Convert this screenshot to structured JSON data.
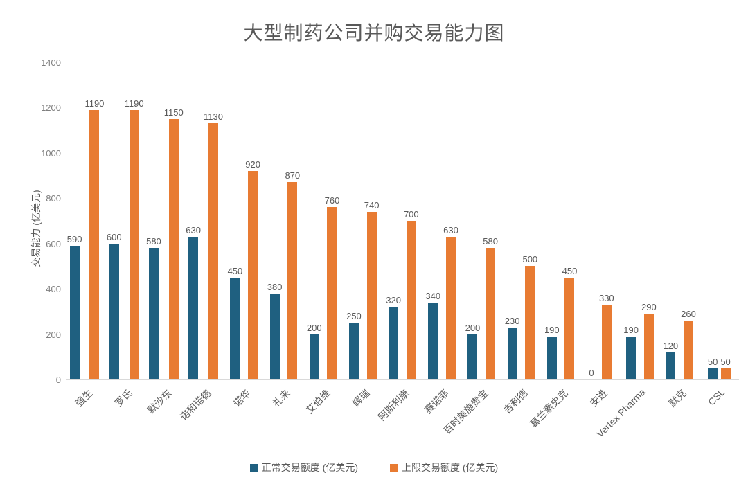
{
  "title": "大型制药公司并购交易能力图",
  "chart_data": {
    "type": "bar",
    "title": "大型制药公司并购交易能力图",
    "xlabel": "",
    "ylabel": "交易能力 (亿美元)",
    "ylim": [
      0,
      1400
    ],
    "yticks": [
      0,
      200,
      400,
      600,
      800,
      1000,
      1200,
      1400
    ],
    "grid": false,
    "legend_position": "bottom",
    "categories": [
      "强生",
      "罗氏",
      "默沙东",
      "诺和诺德",
      "诺华",
      "礼来",
      "艾伯维",
      "辉瑞",
      "阿斯利康",
      "赛诺菲",
      "百时美施贵宝",
      "吉利德",
      "葛兰素史克",
      "安进",
      "Vertex Pharma",
      "默克",
      "CSL"
    ],
    "series": [
      {
        "name": "正常交易额度 (亿美元)",
        "color": "#1f6080",
        "values": [
          590,
          600,
          580,
          630,
          450,
          380,
          200,
          250,
          320,
          340,
          200,
          230,
          190,
          0,
          190,
          120,
          50
        ]
      },
      {
        "name": "上限交易额度 (亿美元)",
        "color": "#e87b32",
        "values": [
          1190,
          1190,
          1150,
          1130,
          920,
          870,
          760,
          740,
          700,
          630,
          580,
          500,
          450,
          330,
          290,
          260,
          50
        ]
      }
    ]
  },
  "colors": {
    "title_text": "#595959",
    "axis_text": "#7f7f7f",
    "label_text": "#595959",
    "axis_line": "#d9d9d9",
    "background": "#ffffff"
  }
}
